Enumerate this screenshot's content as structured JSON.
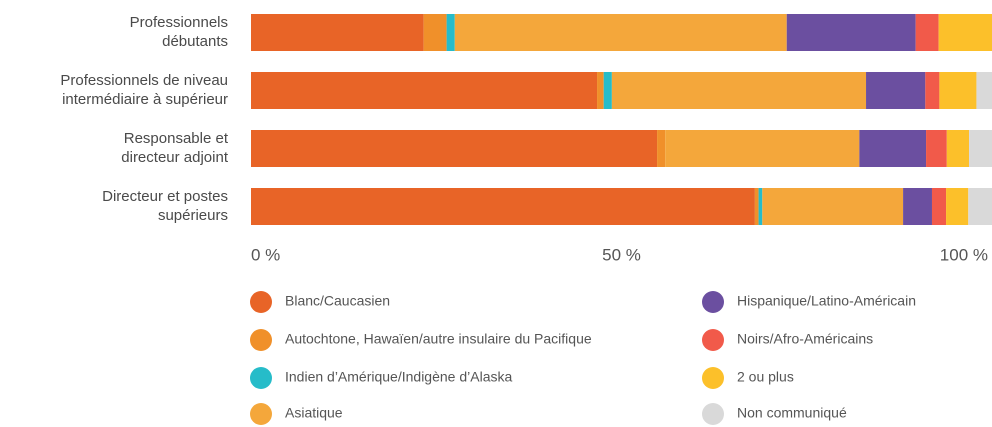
{
  "chart_data": {
    "type": "stacked-bar-horizontal",
    "categories": [
      [
        "Professionnels",
        "débutants"
      ],
      [
        "Professionnels de niveau",
        "intermédiaire à supérieur"
      ],
      [
        "Responsable et",
        "directeur adjoint"
      ],
      [
        "Directeur et postes",
        "supérieurs"
      ]
    ],
    "series": [
      {
        "name": "Blanc/Caucasien",
        "color": "#e86427",
        "values": [
          23.3,
          46.7,
          54.8,
          68.0
        ]
      },
      {
        "name": "Autochtone, Hawaïen/autre insulaire du Pacifique",
        "color": "#f0902a",
        "values": [
          3.1,
          0.9,
          1.1,
          0.5
        ]
      },
      {
        "name": "Indien d’Amérique/Indigène d’Alaska",
        "color": "#26bcc9",
        "values": [
          1.1,
          1.1,
          0,
          0.5
        ]
      },
      {
        "name": "Asiatique",
        "color": "#f4a73b",
        "values": [
          44.8,
          34.3,
          26.2,
          19.0
        ]
      },
      {
        "name": "Hispanique/Latino-Américain",
        "color": "#6b4fa0",
        "values": [
          17.4,
          8.0,
          9.0,
          3.9
        ]
      },
      {
        "name": "Noirs/Afro-Américains",
        "color": "#f15a4a",
        "values": [
          3.1,
          1.9,
          2.8,
          1.9
        ]
      },
      {
        "name": "2 ou plus",
        "color": "#fcc02a",
        "values": [
          7.2,
          5.0,
          3.0,
          3.0
        ]
      },
      {
        "name": "Non communiqué",
        "color": "#d9d9d9",
        "values": [
          0,
          2.1,
          3.1,
          3.2
        ]
      }
    ],
    "xlim": [
      0,
      100
    ],
    "xticks": [
      {
        "value": 0,
        "label": "0 %"
      },
      {
        "value": 50,
        "label": "50 %"
      },
      {
        "value": 100,
        "label": "100 %"
      }
    ]
  }
}
